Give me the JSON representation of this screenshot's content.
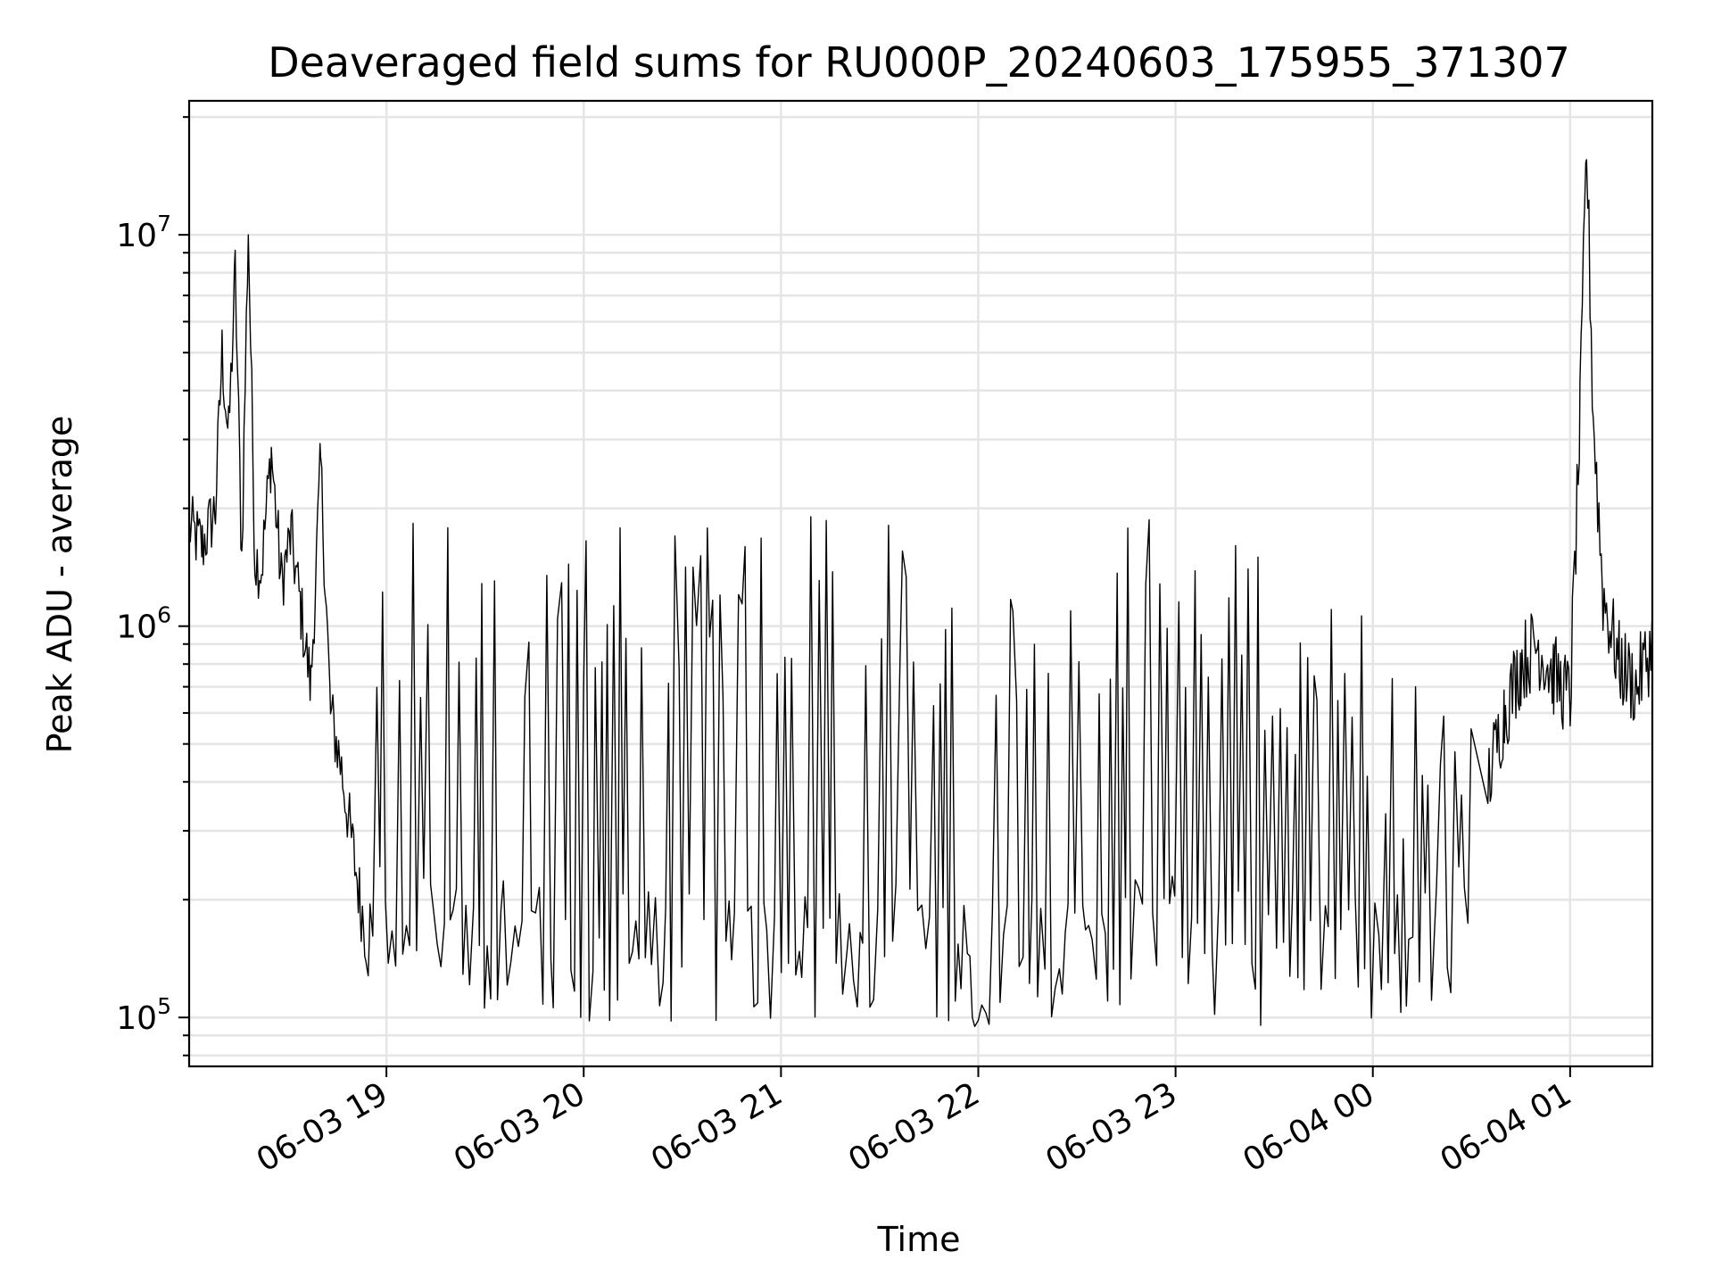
{
  "chart_data": {
    "type": "line",
    "title": "Deaveraged field sums for RU000P_20240603_175955_371307",
    "xlabel": "Time",
    "ylabel": "Peak ADU - average",
    "yscale": "log",
    "ylim": [
      75000,
      22000000
    ],
    "xlim": [
      "2024-06-03 18:00",
      "2024-06-04 01:25"
    ],
    "grid": true,
    "line_color": "#000000",
    "grid_color": "#e5e5e5",
    "x_ticks": [
      {
        "label": "06-03 19",
        "value": "2024-06-03 19:00"
      },
      {
        "label": "06-03 20",
        "value": "2024-06-03 20:00"
      },
      {
        "label": "06-03 21",
        "value": "2024-06-03 21:00"
      },
      {
        "label": "06-03 22",
        "value": "2024-06-03 22:00"
      },
      {
        "label": "06-03 23",
        "value": "2024-06-03 23:00"
      },
      {
        "label": "06-04 00",
        "value": "2024-06-04 00:00"
      },
      {
        "label": "06-04 01",
        "value": "2024-06-04 01:00"
      }
    ],
    "y_ticks": [
      {
        "base": "10",
        "exp": "5",
        "value": 100000
      },
      {
        "base": "10",
        "exp": "6",
        "value": 1000000
      },
      {
        "base": "10",
        "exp": "7",
        "value": 10000000
      }
    ],
    "series": [
      {
        "x": [
          "2024-06-03 18:00",
          "2024-06-03 18:04",
          "2024-06-03 18:08",
          "2024-06-03 18:10",
          "2024-06-03 18:12",
          "2024-06-03 18:14",
          "2024-06-03 18:16",
          "2024-06-03 18:18",
          "2024-06-03 18:20",
          "2024-06-03 18:22",
          "2024-06-03 18:25",
          "2024-06-03 18:28",
          "2024-06-03 18:31",
          "2024-06-03 18:34",
          "2024-06-03 18:37",
          "2024-06-03 18:40",
          "2024-06-03 18:43",
          "2024-06-03 18:46",
          "2024-06-03 18:49",
          "2024-06-03 18:52",
          "2024-06-03 18:55"
        ],
        "y": [
          1800000,
          1600000,
          2000000,
          5000000,
          3000000,
          8000000,
          1500000,
          10500000,
          1500000,
          1400000,
          2800000,
          1300000,
          1700000,
          1100000,
          700000,
          2600000,
          600000,
          450000,
          300000,
          200000,
          140000
        ]
      },
      {
        "x": [
          "2024-06-03 18:55",
          "2024-06-03 19:30",
          "2024-06-03 20:00",
          "2024-06-03 20:30",
          "2024-06-03 21:00",
          "2024-06-03 21:30",
          "2024-06-03 22:00",
          "2024-06-03 22:30",
          "2024-06-03 23:00",
          "2024-06-03 23:30",
          "2024-06-04 00:00",
          "2024-06-04 00:15",
          "2024-06-04 00:30"
        ],
        "y_low": [
          130000,
          120000,
          110000,
          115000,
          115000,
          120000,
          110000,
          115000,
          125000,
          110000,
          110000,
          115000,
          140000
        ],
        "y_high": [
          1400000,
          1400000,
          1400000,
          1350000,
          1350000,
          1400000,
          1400000,
          1450000,
          1400000,
          1150000,
          750000,
          500000,
          450000
        ]
      },
      {
        "x": [
          "2024-06-04 00:35",
          "2024-06-04 00:40",
          "2024-06-04 00:45",
          "2024-06-04 00:50",
          "2024-06-04 00:55",
          "2024-06-04 01:00",
          "2024-06-04 01:03",
          "2024-06-04 01:05",
          "2024-06-04 01:07",
          "2024-06-04 01:10",
          "2024-06-04 01:15",
          "2024-06-04 01:20",
          "2024-06-04 01:25"
        ],
        "y": [
          400000,
          600000,
          800000,
          900000,
          750000,
          650000,
          3300000,
          17000000,
          3500000,
          1200000,
          800000,
          700000,
          900000
        ]
      }
    ]
  }
}
